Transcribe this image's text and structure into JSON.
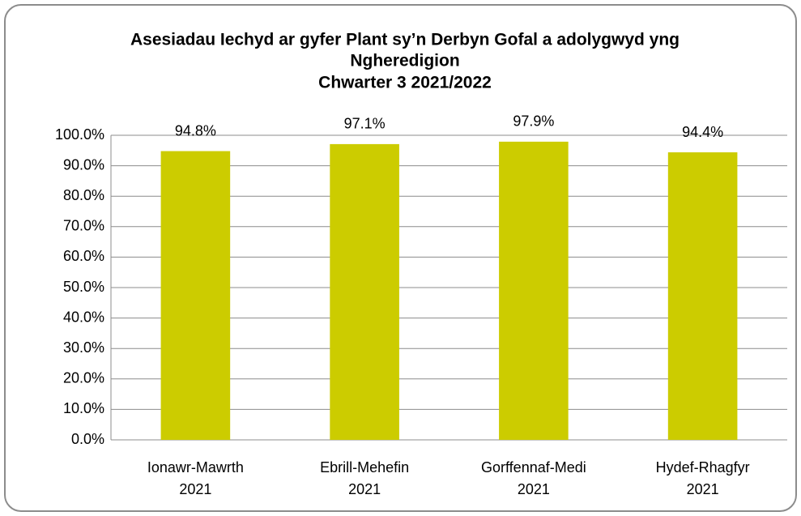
{
  "chart_data": {
    "type": "bar",
    "title": [
      "Asesiadau Iechyd ar gyfer Plant sy’n Derbyn Gofal a adolygwyd yng",
      "Ngheredigion",
      "Chwarter 3  2021/2022"
    ],
    "categories": [
      [
        "Ionawr-Mawrth",
        "2021"
      ],
      [
        "Ebrill-Mehefin",
        "2021"
      ],
      [
        "Gorffennaf-Medi",
        "2021"
      ],
      [
        "Hydef-Rhagfyr",
        "2021"
      ]
    ],
    "values": [
      94.8,
      97.1,
      97.9,
      94.4
    ],
    "value_labels": [
      "94.8%",
      "97.1%",
      "97.9%",
      "94.4%"
    ],
    "color": "#cccc00",
    "ylim": [
      0,
      100
    ],
    "yticks": [
      {
        "value": 0,
        "label": "0.0%"
      },
      {
        "value": 10,
        "label": "10.0%"
      },
      {
        "value": 20,
        "label": "20.0%"
      },
      {
        "value": 30,
        "label": "30.0%"
      },
      {
        "value": 40,
        "label": "40.0%"
      },
      {
        "value": 50,
        "label": "50.0%"
      },
      {
        "value": 60,
        "label": "60.0%"
      },
      {
        "value": 70,
        "label": "70.0%"
      },
      {
        "value": 80,
        "label": "80.0%"
      },
      {
        "value": 90,
        "label": "90.0%"
      },
      {
        "value": 100,
        "label": "100.0%"
      }
    ],
    "grid": true
  }
}
